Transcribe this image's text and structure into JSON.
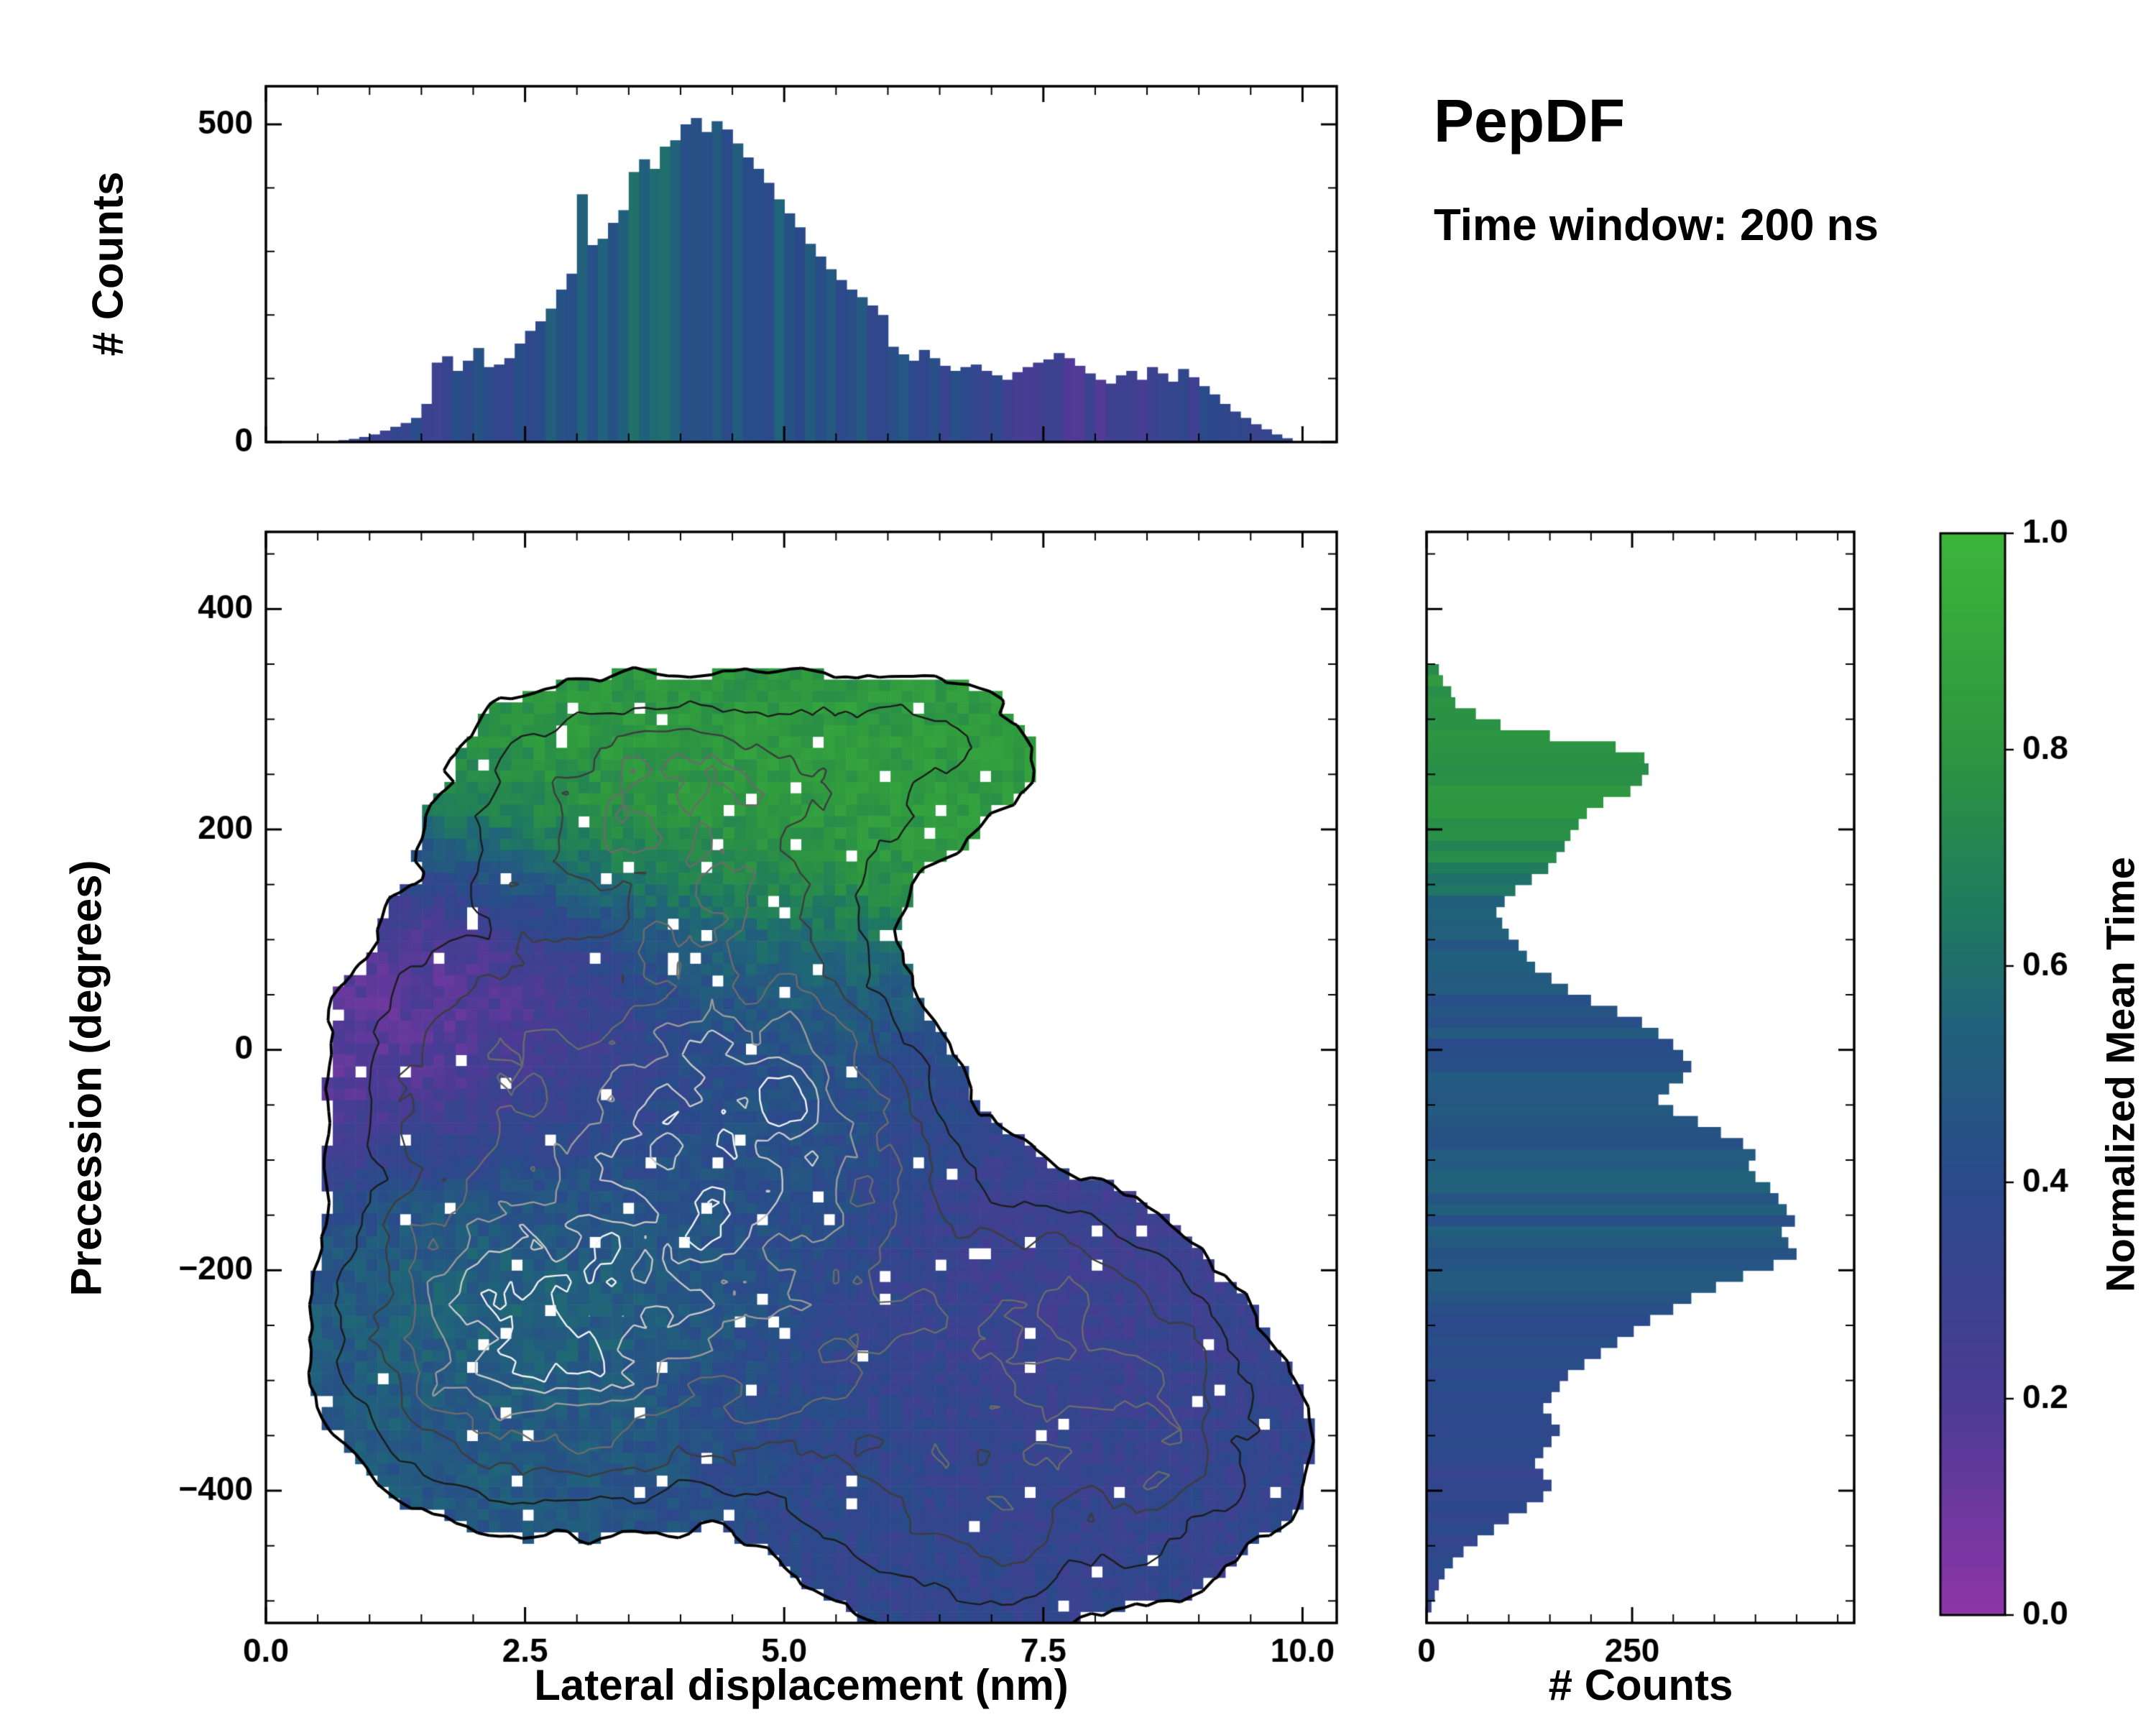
{
  "title": {
    "main": "PepDF",
    "subtitle": "Time window: 200 ns"
  },
  "chart_data": [
    {
      "id": "top_histogram",
      "type": "bar",
      "ylabel": "# Counts",
      "ylim": [
        0,
        560
      ],
      "yticks": [
        "0",
        "500"
      ],
      "ytick_values": [
        0,
        500
      ],
      "xlim": [
        0,
        10.33
      ],
      "x_start": 0.75,
      "bin_width": 0.1,
      "values": [
        3,
        5,
        8,
        12,
        18,
        24,
        30,
        38,
        60,
        125,
        135,
        112,
        128,
        148,
        118,
        122,
        132,
        155,
        175,
        190,
        210,
        240,
        265,
        390,
        310,
        320,
        345,
        365,
        425,
        445,
        430,
        465,
        475,
        500,
        510,
        488,
        505,
        492,
        470,
        448,
        430,
        408,
        382,
        360,
        338,
        312,
        292,
        272,
        255,
        240,
        228,
        215,
        200,
        150,
        138,
        128,
        145,
        132,
        120,
        112,
        118,
        122,
        112,
        105,
        98,
        110,
        118,
        125,
        130,
        140,
        132,
        120,
        108,
        98,
        92,
        105,
        112,
        98,
        118,
        108,
        95,
        115,
        102,
        88,
        75,
        60,
        48,
        38,
        28,
        20,
        12,
        6
      ],
      "color_keypoints": {
        "x": [
          0.8,
          1.4,
          2.0,
          2.6,
          3.1,
          3.6,
          4.1,
          4.6,
          5.1,
          5.6,
          6.1,
          6.6,
          7.1,
          7.6,
          8.1,
          8.6,
          9.1,
          9.6,
          10.0
        ],
        "t": [
          0.28,
          0.33,
          0.38,
          0.46,
          0.52,
          0.55,
          0.5,
          0.48,
          0.46,
          0.43,
          0.4,
          0.38,
          0.3,
          0.26,
          0.24,
          0.28,
          0.33,
          0.36,
          0.38
        ]
      }
    },
    {
      "id": "main_density_map",
      "type": "heatmap",
      "xlabel": "Lateral displacement (nm)",
      "ylabel": "Precession (degrees)",
      "xlim": [
        0,
        10.33
      ],
      "ylim": [
        -520,
        470
      ],
      "xtick_labels": [
        "0.0",
        "2.5",
        "5.0",
        "7.5",
        "10.0"
      ],
      "xtick_values": [
        0,
        2.5,
        5,
        7.5,
        10
      ],
      "ytick_labels": [
        "−400",
        "−200",
        "0",
        "200",
        "400"
      ],
      "ytick_values": [
        -400,
        -200,
        0,
        200,
        400
      ],
      "grid": {
        "nx": 96,
        "ny": 96
      },
      "mask_level": 0.16,
      "contour_levels": [
        0.16,
        0.28,
        0.4,
        0.52,
        0.64,
        0.76,
        0.86
      ],
      "contour_colors": [
        "#000000",
        "#1c1c1c",
        "#3d3d3d",
        "#6b6b6b",
        "#9a9a9a",
        "#c8c8c8",
        "#f2f2f2"
      ],
      "density_blobs": [
        {
          "x": 3.9,
          "y": -150,
          "sx": 1.25,
          "sy": 120,
          "w": 1.0
        },
        {
          "x": 2.6,
          "y": -240,
          "sx": 0.95,
          "sy": 95,
          "w": 0.8
        },
        {
          "x": 4.6,
          "y": -40,
          "sx": 1.05,
          "sy": 95,
          "w": 0.75
        },
        {
          "x": 2.2,
          "y": 30,
          "sx": 1.05,
          "sy": 85,
          "w": 0.6
        },
        {
          "x": 1.4,
          "y": -120,
          "sx": 0.7,
          "sy": 120,
          "w": 0.35
        },
        {
          "x": 1.6,
          "y": -300,
          "sx": 0.85,
          "sy": 80,
          "w": 0.45
        },
        {
          "x": 3.1,
          "y": -330,
          "sx": 1.0,
          "sy": 75,
          "w": 0.5
        },
        {
          "x": 4.3,
          "y": 245,
          "sx": 1.35,
          "sy": 75,
          "w": 0.6
        },
        {
          "x": 2.9,
          "y": 215,
          "sx": 0.95,
          "sy": 75,
          "w": 0.5
        },
        {
          "x": 6.4,
          "y": 270,
          "sx": 1.0,
          "sy": 62,
          "w": 0.45
        },
        {
          "x": 4.7,
          "y": 120,
          "sx": 0.8,
          "sy": 75,
          "w": 0.5
        },
        {
          "x": 5.6,
          "y": -60,
          "sx": 0.75,
          "sy": 85,
          "w": 0.4
        },
        {
          "x": 6.8,
          "y": -200,
          "sx": 1.15,
          "sy": 85,
          "w": 0.55
        },
        {
          "x": 8.0,
          "y": -255,
          "sx": 1.0,
          "sy": 75,
          "w": 0.5
        },
        {
          "x": 7.6,
          "y": -400,
          "sx": 1.35,
          "sy": 95,
          "w": 0.55
        },
        {
          "x": 6.3,
          "y": -435,
          "sx": 0.95,
          "sy": 75,
          "w": 0.45
        },
        {
          "x": 9.0,
          "y": -355,
          "sx": 0.85,
          "sy": 75,
          "w": 0.4
        },
        {
          "x": 5.1,
          "y": -300,
          "sx": 0.85,
          "sy": 75,
          "w": 0.45
        }
      ],
      "time_blobs": [
        {
          "v": 0.85,
          "x": 4.2,
          "y": 250,
          "sx": 1.9,
          "sy": 95,
          "w": 3.0
        },
        {
          "v": 0.85,
          "x": 6.4,
          "y": 270,
          "sx": 1.2,
          "sy": 75,
          "w": 3.0
        },
        {
          "v": 0.08,
          "x": 1.8,
          "y": 25,
          "sx": 1.35,
          "sy": 95,
          "w": 3.0
        },
        {
          "v": 0.3,
          "x": 3.4,
          "y": -40,
          "sx": 1.0,
          "sy": 70,
          "w": 1.6
        },
        {
          "v": 0.55,
          "x": 3.5,
          "y": -185,
          "sx": 1.5,
          "sy": 120,
          "w": 2.2
        },
        {
          "v": 0.45,
          "x": 5.0,
          "y": -100,
          "sx": 1.2,
          "sy": 110,
          "w": 1.8
        },
        {
          "v": 0.25,
          "x": 7.0,
          "y": -220,
          "sx": 1.6,
          "sy": 110,
          "w": 3.0
        },
        {
          "v": 0.33,
          "x": 7.8,
          "y": -420,
          "sx": 1.7,
          "sy": 110,
          "w": 3.0
        },
        {
          "v": 0.48,
          "x": 2.3,
          "y": -300,
          "sx": 1.0,
          "sy": 85,
          "w": 2.0
        },
        {
          "v": 0.55,
          "x": 4.6,
          "y": 70,
          "sx": 0.85,
          "sy": 65,
          "w": 1.6
        },
        {
          "v": 0.4,
          "x": 5.8,
          "y": -350,
          "sx": 0.95,
          "sy": 85,
          "w": 1.6
        },
        {
          "v": 0.58,
          "x": 2.0,
          "y": -185,
          "sx": 0.85,
          "sy": 75,
          "w": 1.6
        }
      ],
      "time_base": {
        "v": 0.45,
        "w": 0.25
      }
    },
    {
      "id": "right_histogram",
      "type": "bar_horizontal",
      "xlabel": "# Counts",
      "xlim": [
        0,
        520
      ],
      "xticks": [
        "0",
        "250"
      ],
      "xtick_values": [
        0,
        250
      ],
      "ylim": [
        -520,
        470
      ],
      "y_start_top": 345,
      "bin_height": 10,
      "values_top_to_bottom": [
        15,
        20,
        30,
        35,
        60,
        90,
        150,
        230,
        265,
        270,
        262,
        248,
        215,
        195,
        185,
        175,
        168,
        158,
        148,
        128,
        108,
        95,
        85,
        92,
        100,
        112,
        122,
        132,
        152,
        172,
        200,
        232,
        262,
        282,
        300,
        312,
        322,
        312,
        295,
        282,
        300,
        330,
        358,
        385,
        400,
        392,
        400,
        418,
        428,
        438,
        448,
        432,
        440,
        450,
        422,
        385,
        352,
        322,
        300,
        272,
        252,
        232,
        212,
        192,
        172,
        162,
        152,
        142,
        152,
        162,
        152,
        142,
        132,
        142,
        152,
        142,
        122,
        100,
        82,
        62,
        45,
        32,
        22,
        15,
        10,
        6
      ],
      "color_keypoints": {
        "y": [
          -505,
          -420,
          -330,
          -260,
          -200,
          -120,
          -60,
          0,
          40,
          90,
          130,
          160,
          200,
          260,
          345
        ],
        "t": [
          0.36,
          0.35,
          0.36,
          0.4,
          0.46,
          0.5,
          0.47,
          0.44,
          0.46,
          0.5,
          0.55,
          0.66,
          0.78,
          0.8,
          0.78
        ]
      }
    },
    {
      "id": "colorbar",
      "type": "colorbar",
      "label": "Normalized Mean Time",
      "ticks": [
        "0.0",
        "0.2",
        "0.4",
        "0.6",
        "0.8",
        "1.0"
      ],
      "tick_values": [
        0,
        0.2,
        0.4,
        0.6,
        0.8,
        1.0
      ],
      "stops": [
        [
          0.0,
          "#8e35a8"
        ],
        [
          0.2,
          "#4b3b95"
        ],
        [
          0.4,
          "#2a4a8a"
        ],
        [
          0.55,
          "#20637a"
        ],
        [
          0.65,
          "#1f7a5e"
        ],
        [
          0.8,
          "#2d9640"
        ],
        [
          1.0,
          "#3db53a"
        ]
      ]
    }
  ]
}
